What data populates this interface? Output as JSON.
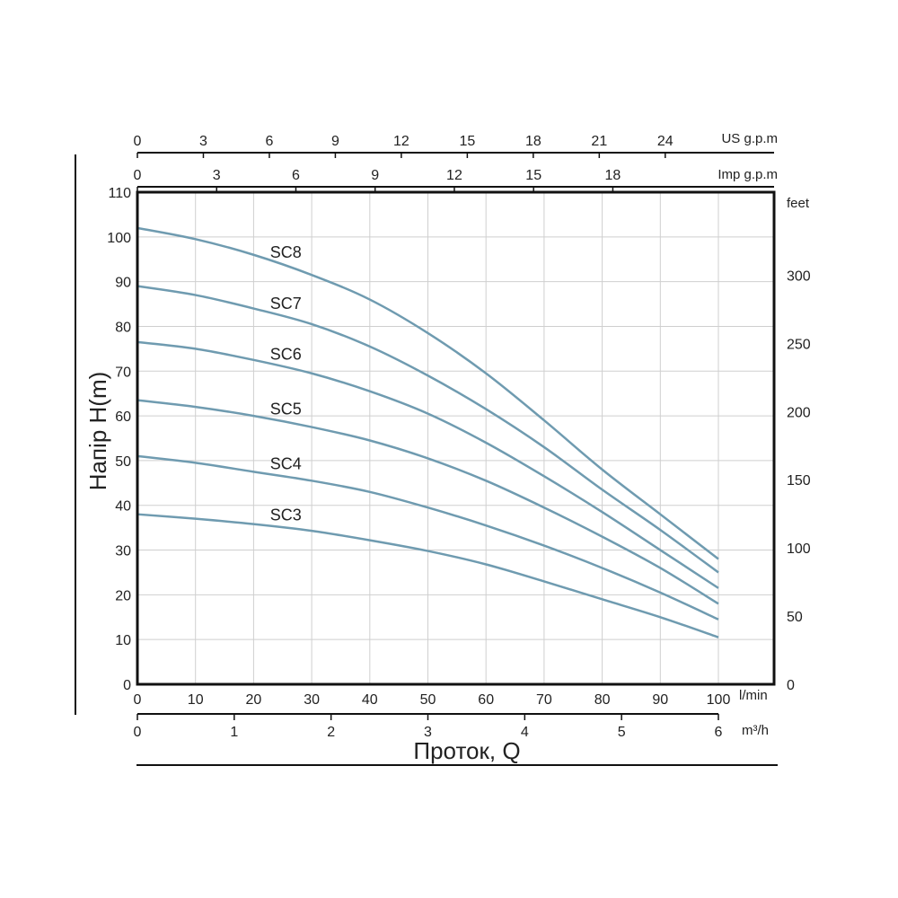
{
  "chart_data": {
    "type": "line",
    "title": "",
    "ylabel": "Напір H(m)",
    "xlabel": "Проток, Q",
    "x_unit": "l/min",
    "xlim": [
      0,
      100
    ],
    "ylim": [
      0,
      110
    ],
    "grid": true,
    "x_ticks": [
      0,
      10,
      20,
      30,
      40,
      50,
      60,
      70,
      80,
      90,
      100
    ],
    "y_ticks": [
      0,
      10,
      20,
      30,
      40,
      50,
      60,
      70,
      80,
      90,
      100,
      110
    ],
    "secondary_axes": {
      "feet": {
        "unit": "feet",
        "ticks": [
          0,
          50,
          100,
          150,
          200,
          250,
          300
        ],
        "factor": 3.28084
      },
      "m3h": {
        "unit": "m³/h",
        "ticks": [
          0,
          1,
          2,
          3,
          4,
          5,
          6
        ],
        "factor": 0.06
      },
      "us_gpm": {
        "unit": "US g.p.m",
        "ticks": [
          0,
          3,
          6,
          9,
          12,
          15,
          18,
          21,
          24
        ],
        "factor": 0.264172
      },
      "imp_gpm": {
        "unit": "Imp g.p.m",
        "ticks": [
          0,
          3,
          6,
          9,
          12,
          15,
          18
        ],
        "factor": 0.219969
      }
    },
    "curve_color": "#6f9bb0",
    "series": [
      {
        "name": "SC8",
        "x": [
          0,
          10,
          20,
          30,
          40,
          50,
          60,
          70,
          80,
          90,
          100
        ],
        "y": [
          102,
          99.5,
          96,
          91.5,
          86,
          78.5,
          69.5,
          59,
          48,
          38,
          28
        ]
      },
      {
        "name": "SC7",
        "x": [
          0,
          10,
          20,
          30,
          40,
          50,
          60,
          70,
          80,
          90,
          100
        ],
        "y": [
          89,
          87,
          84,
          80.5,
          75.5,
          69,
          61.5,
          53,
          43.5,
          34.5,
          25
        ]
      },
      {
        "name": "SC6",
        "x": [
          0,
          10,
          20,
          30,
          40,
          50,
          60,
          70,
          80,
          90,
          100
        ],
        "y": [
          76.5,
          75,
          72.5,
          69.5,
          65.5,
          60.5,
          54,
          46.5,
          38.5,
          30,
          21.5
        ]
      },
      {
        "name": "SC5",
        "x": [
          0,
          10,
          20,
          30,
          40,
          50,
          60,
          70,
          80,
          90,
          100
        ],
        "y": [
          63.5,
          62,
          60,
          57.5,
          54.5,
          50.5,
          45.5,
          39.5,
          33,
          26,
          18
        ]
      },
      {
        "name": "SC4",
        "x": [
          0,
          10,
          20,
          30,
          40,
          50,
          60,
          70,
          80,
          90,
          100
        ],
        "y": [
          51,
          49.5,
          47.5,
          45.5,
          43,
          39.5,
          35.5,
          31,
          26,
          20.5,
          14.5
        ]
      },
      {
        "name": "SC3",
        "x": [
          0,
          10,
          20,
          30,
          40,
          50,
          60,
          70,
          80,
          90,
          100
        ],
        "y": [
          38,
          37,
          35.8,
          34.3,
          32.2,
          29.8,
          26.8,
          23,
          19,
          15,
          10.5
        ]
      }
    ],
    "label_positions_x": [
      25,
      25,
      25,
      25,
      25,
      25
    ]
  }
}
